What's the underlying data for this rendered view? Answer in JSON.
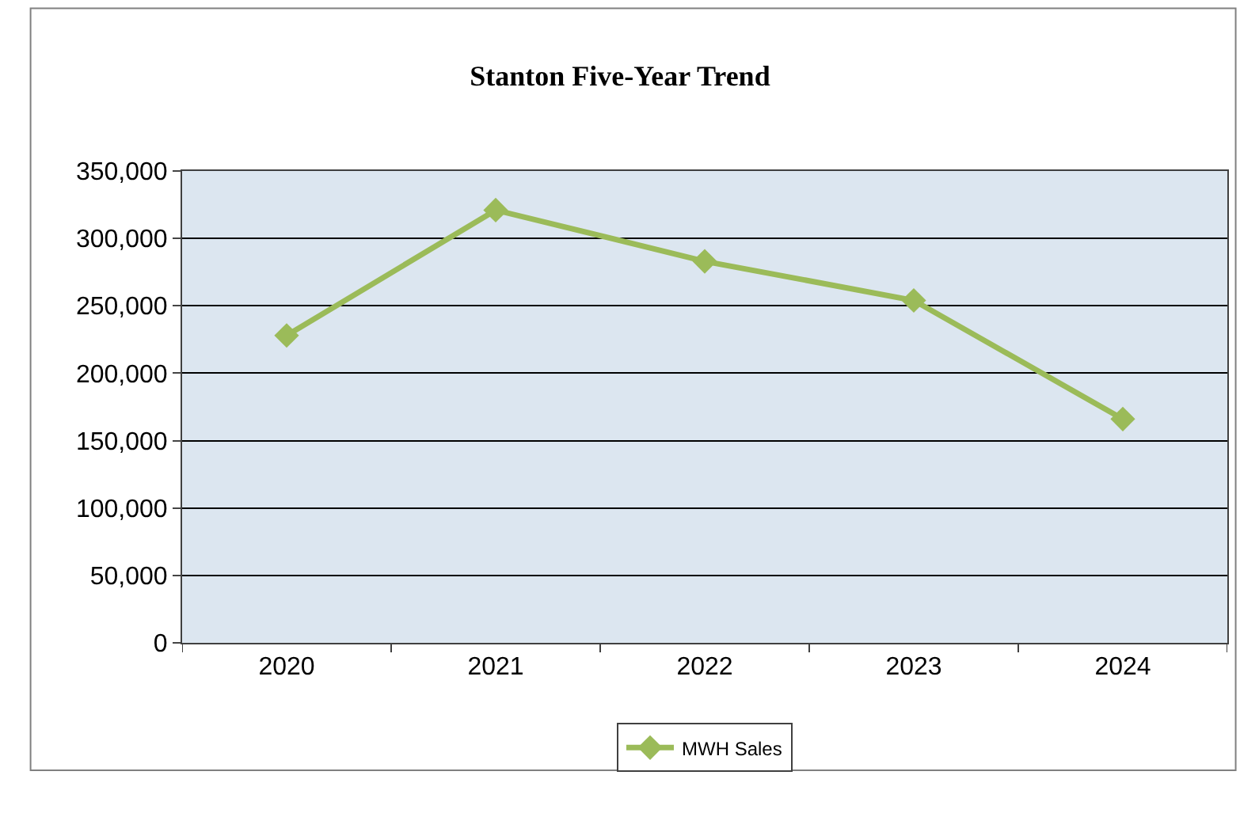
{
  "chart_data": {
    "type": "line",
    "title": "Stanton Five-Year Trend",
    "categories": [
      "2020",
      "2021",
      "2022",
      "2023",
      "2024"
    ],
    "series": [
      {
        "name": "MWH Sales",
        "color": "#9bbb59",
        "values": [
          228000,
          321000,
          283000,
          254000,
          166000
        ]
      }
    ],
    "ylim": [
      0,
      350000
    ],
    "yticks": [
      {
        "value": 0,
        "label": "0"
      },
      {
        "value": 50000,
        "label": "50,000"
      },
      {
        "value": 100000,
        "label": "100,000"
      },
      {
        "value": 150000,
        "label": "150,000"
      },
      {
        "value": 200000,
        "label": "200,000"
      },
      {
        "value": 250000,
        "label": "250,000"
      },
      {
        "value": 300000,
        "label": "300,000"
      },
      {
        "value": 350000,
        "label": "350,000"
      }
    ],
    "grid": "y",
    "legend": "bottom",
    "marker": "diamond",
    "line_style": "solid"
  }
}
